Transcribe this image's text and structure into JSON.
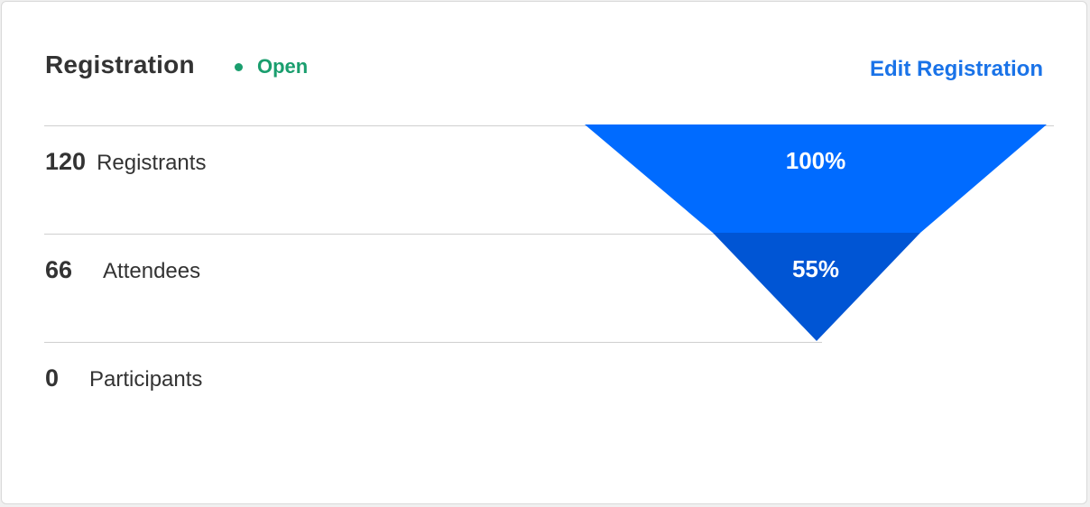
{
  "header": {
    "title": "Registration",
    "status": "Open",
    "status_color": "#1a9e6e",
    "edit_label": "Edit Registration"
  },
  "stats": [
    {
      "value": "120",
      "label": "Registrants"
    },
    {
      "value": "66",
      "label": "Attendees"
    },
    {
      "value": "0",
      "label": "Participants"
    }
  ],
  "funnel": {
    "stages": [
      {
        "name": "Registrants",
        "percent": "100%",
        "fraction": 1.0,
        "color": "#006bff"
      },
      {
        "name": "Attendees",
        "percent": "55%",
        "fraction": 0.55,
        "color": "#0055d4"
      }
    ]
  }
}
